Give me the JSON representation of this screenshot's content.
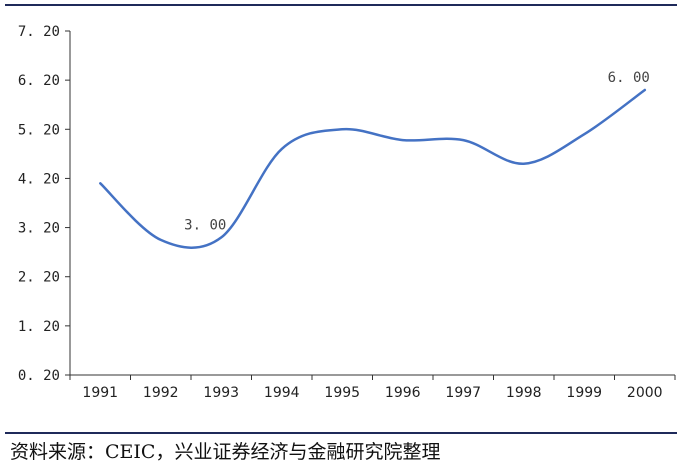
{
  "chart_data": {
    "type": "line",
    "title": "",
    "xlabel": "",
    "ylabel": "",
    "categories": [
      "1991",
      "1992",
      "1993",
      "1994",
      "1995",
      "1996",
      "1997",
      "1998",
      "1999",
      "2000"
    ],
    "y_ticks": [
      "0. 20",
      "1. 20",
      "2. 20",
      "3. 20",
      "4. 20",
      "5. 20",
      "6. 20",
      "7. 20"
    ],
    "ylim": [
      0.2,
      7.2
    ],
    "grid": false,
    "series": [
      {
        "color": "#4472C4",
        "values": [
          4.1,
          2.95,
          3.0,
          4.8,
          5.2,
          4.98,
          4.98,
          4.5,
          5.1,
          6.0
        ]
      }
    ],
    "annotations": [
      {
        "category": "1993",
        "value": 3.0,
        "label": "3. 00"
      },
      {
        "category": "2000",
        "value": 6.0,
        "label": "6. 00"
      }
    ]
  },
  "footer": {
    "source": "资料来源：CEIC，兴业证券经济与金融研究院整理"
  }
}
